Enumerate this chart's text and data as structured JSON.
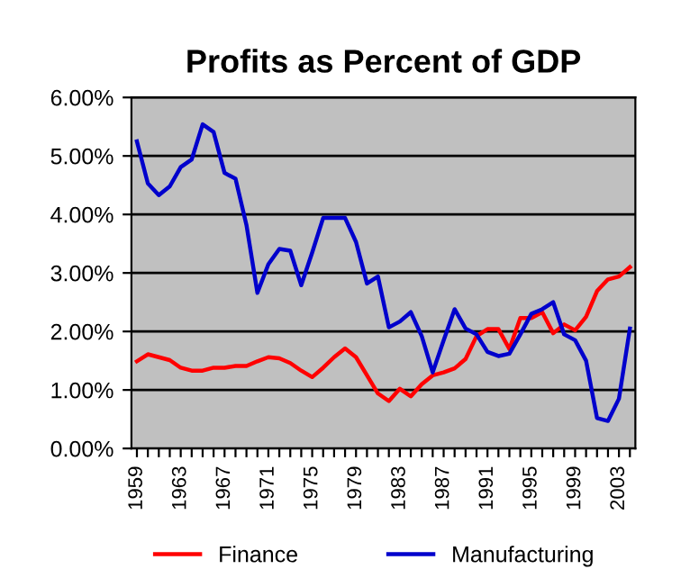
{
  "chart_data": {
    "type": "line",
    "title": "Profits as Percent of GDP",
    "categories": [
      "1959",
      null,
      null,
      null,
      "1963",
      null,
      null,
      null,
      "1967",
      null,
      null,
      null,
      "1971",
      null,
      null,
      null,
      "1975",
      null,
      null,
      null,
      "1979",
      null,
      null,
      null,
      "1983",
      null,
      null,
      null,
      "1987",
      null,
      null,
      null,
      "1991",
      null,
      null,
      null,
      "1995",
      null,
      null,
      null,
      "1999",
      null,
      null,
      null,
      "2003",
      null
    ],
    "series": [
      {
        "name": "Finance",
        "color": "#ff0000",
        "values": [
          1.49,
          1.61,
          1.56,
          1.51,
          1.38,
          1.33,
          1.33,
          1.38,
          1.38,
          1.41,
          1.41,
          1.49,
          1.56,
          1.54,
          1.46,
          1.33,
          1.22,
          1.38,
          1.56,
          1.71,
          1.56,
          1.25,
          0.94,
          0.81,
          1.02,
          0.89,
          1.1,
          1.25,
          1.3,
          1.37,
          1.53,
          1.92,
          2.04,
          2.04,
          1.7,
          2.23,
          2.23,
          2.33,
          1.97,
          2.12,
          2.02,
          2.25,
          2.69,
          2.89,
          2.94,
          3.1
        ]
      },
      {
        "name": "Manufacturing",
        "color": "#0000cc",
        "values": [
          5.25,
          4.53,
          4.33,
          4.48,
          4.81,
          4.94,
          5.54,
          5.41,
          4.71,
          4.61,
          3.82,
          2.66,
          3.15,
          3.41,
          3.38,
          2.79,
          3.35,
          3.94,
          3.94,
          3.94,
          3.53,
          2.82,
          2.94,
          2.07,
          2.17,
          2.33,
          1.92,
          1.3,
          1.85,
          2.38,
          2.05,
          1.95,
          1.65,
          1.58,
          1.62,
          1.95,
          2.3,
          2.38,
          2.5,
          1.95,
          1.85,
          1.5,
          0.52,
          0.47,
          0.85,
          2.05
        ]
      }
    ],
    "ylim": [
      0,
      6
    ],
    "yticks": [
      {
        "value": 0,
        "label": "0.00%"
      },
      {
        "value": 1,
        "label": "1.00%"
      },
      {
        "value": 2,
        "label": "2.00%"
      },
      {
        "value": 3,
        "label": "3.00%"
      },
      {
        "value": 4,
        "label": "4.00%"
      },
      {
        "value": 5,
        "label": "5.00%"
      },
      {
        "value": 6,
        "label": "6.00%"
      }
    ],
    "grid": "y",
    "legend": "bottom",
    "marker": "none",
    "line_style": "solid"
  }
}
